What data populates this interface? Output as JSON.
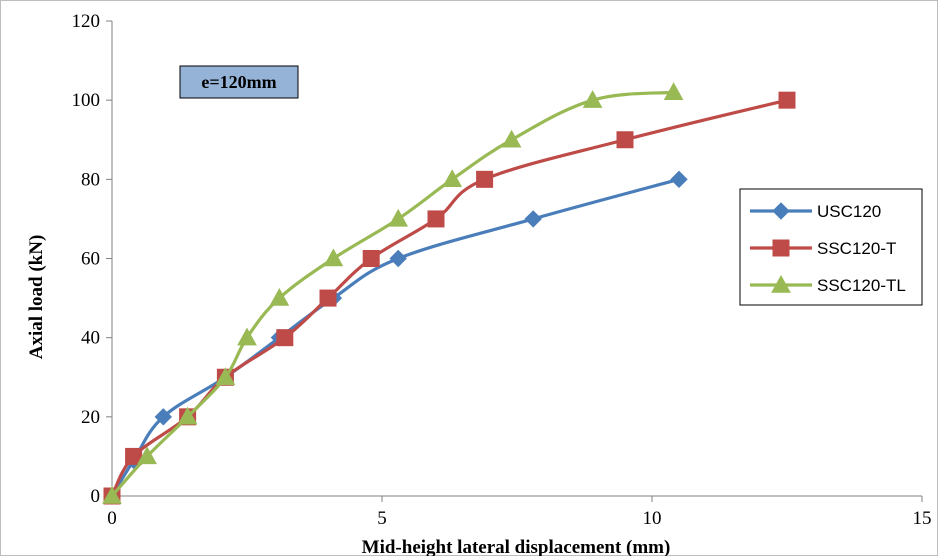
{
  "chart_data": {
    "type": "line",
    "annotation": "e=120mm",
    "xlabel": "Mid-height lateral displacement (mm)",
    "ylabel": "Axial load (kN)",
    "xlim": [
      0,
      15
    ],
    "ylim": [
      0,
      120
    ],
    "xticks": [
      0,
      5,
      10,
      15
    ],
    "yticks": [
      0,
      20,
      40,
      60,
      80,
      100,
      120
    ],
    "grid": false,
    "legend_position": "right",
    "series": [
      {
        "name": "USC120",
        "color": "#4a7ebb",
        "marker": "diamond",
        "points": [
          [
            0,
            0
          ],
          [
            0.4,
            9
          ],
          [
            0.95,
            20
          ],
          [
            2.1,
            30
          ],
          [
            3.1,
            40
          ],
          [
            4.1,
            50
          ],
          [
            5.3,
            60
          ],
          [
            7.8,
            70
          ],
          [
            10.5,
            80
          ]
        ]
      },
      {
        "name": "SSC120-T",
        "color": "#be4b48",
        "marker": "square",
        "points": [
          [
            0,
            0
          ],
          [
            0.4,
            10
          ],
          [
            1.4,
            20
          ],
          [
            2.1,
            30
          ],
          [
            3.2,
            40
          ],
          [
            4.0,
            50
          ],
          [
            4.8,
            60
          ],
          [
            6.0,
            70
          ],
          [
            6.9,
            80
          ],
          [
            9.5,
            90
          ],
          [
            12.5,
            100
          ]
        ]
      },
      {
        "name": "SSC120-TL",
        "color": "#98b954",
        "marker": "triangle",
        "points": [
          [
            0,
            0
          ],
          [
            0.65,
            10
          ],
          [
            1.4,
            20
          ],
          [
            2.1,
            30
          ],
          [
            2.5,
            40
          ],
          [
            3.1,
            50
          ],
          [
            4.1,
            60
          ],
          [
            5.3,
            70
          ],
          [
            6.3,
            80
          ],
          [
            7.4,
            90
          ],
          [
            8.9,
            100
          ],
          [
            10.4,
            102
          ]
        ]
      }
    ]
  }
}
